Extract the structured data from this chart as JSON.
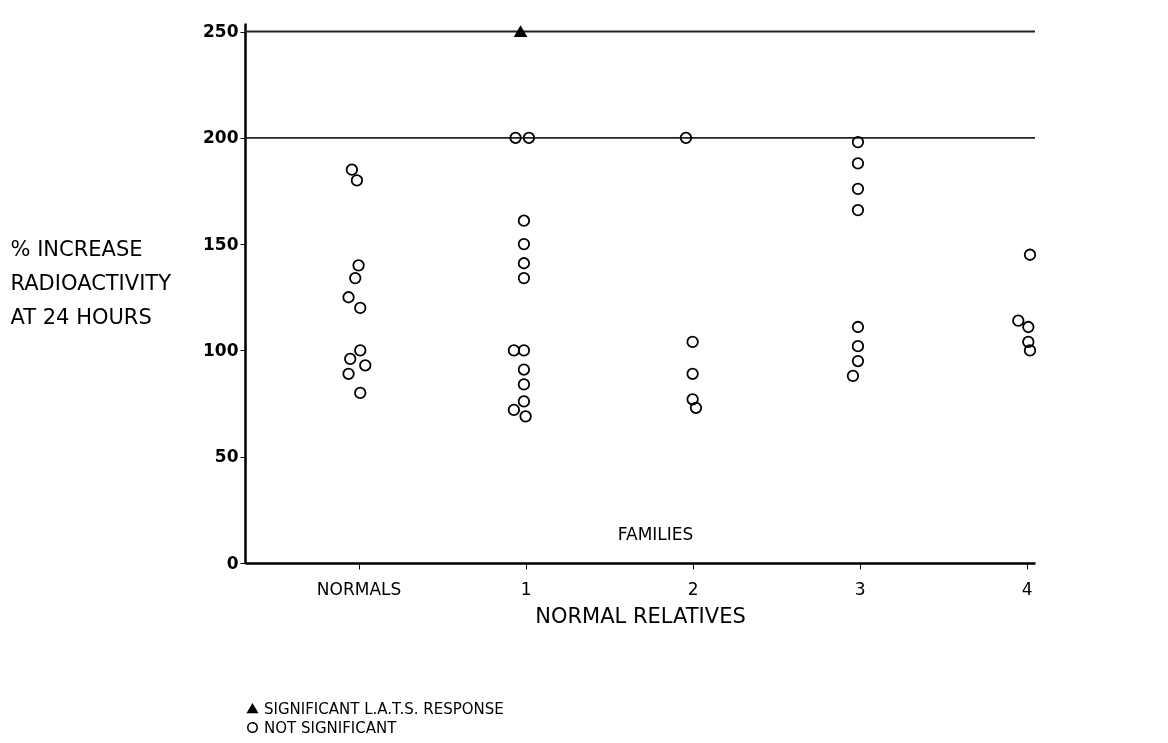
{
  "chart_data": {
    "type": "scatter",
    "xlabel": "NORMAL RELATIVES",
    "ylabel": "% INCREASE\nRADIOACTIVITY\nAT 24 HOURS",
    "xlim": [
      -0.68,
      4.05
    ],
    "xticks": [
      {
        "value": 0,
        "label": "NORMALS"
      },
      1,
      2,
      3,
      4
    ],
    "ylim": [
      0,
      254
    ],
    "yticks": [
      0,
      50,
      100,
      150,
      200,
      250
    ],
    "grid": false,
    "legend": "bottom",
    "annotations": [
      "FAMILIES"
    ],
    "ref_lines": [
      {
        "axis": "y",
        "value": 200,
        "label": null
      },
      {
        "axis": "y",
        "value": 250,
        "label": null
      }
    ],
    "series": [
      {
        "name": "SIGNIFICANT L.A.T.S. RESPONSE",
        "color": "#000000",
        "marker": "triangle",
        "x": [
          0.97
        ],
        "values": [
          250
        ]
      },
      {
        "name": "NOT SIGNIFICANT",
        "color": "#000000",
        "marker": "circle",
        "x": [
          -0.04,
          -0.01,
          0.0,
          -0.02,
          -0.06,
          0.01,
          0.01,
          -0.05,
          0.04,
          -0.06,
          0.01,
          0.94,
          1.02,
          0.99,
          0.99,
          0.99,
          0.99,
          0.93,
          0.99,
          0.99,
          0.99,
          0.99,
          0.93,
          1.0,
          1.96,
          2.0,
          2.0,
          2.0,
          2.02,
          2.99,
          2.99,
          2.99,
          2.99,
          2.99,
          2.99,
          2.99,
          2.96,
          4.02,
          3.95,
          4.01,
          4.01,
          4.02
        ],
        "values": [
          185,
          180,
          140,
          134,
          125,
          120,
          100,
          96,
          93,
          89,
          80,
          200,
          200,
          161,
          150,
          141,
          134,
          100,
          100,
          91,
          84,
          76,
          72,
          69,
          200,
          104,
          89,
          77,
          73,
          198,
          188,
          176,
          166,
          111,
          102,
          95,
          88,
          145,
          114,
          111,
          104,
          100
        ]
      }
    ]
  }
}
